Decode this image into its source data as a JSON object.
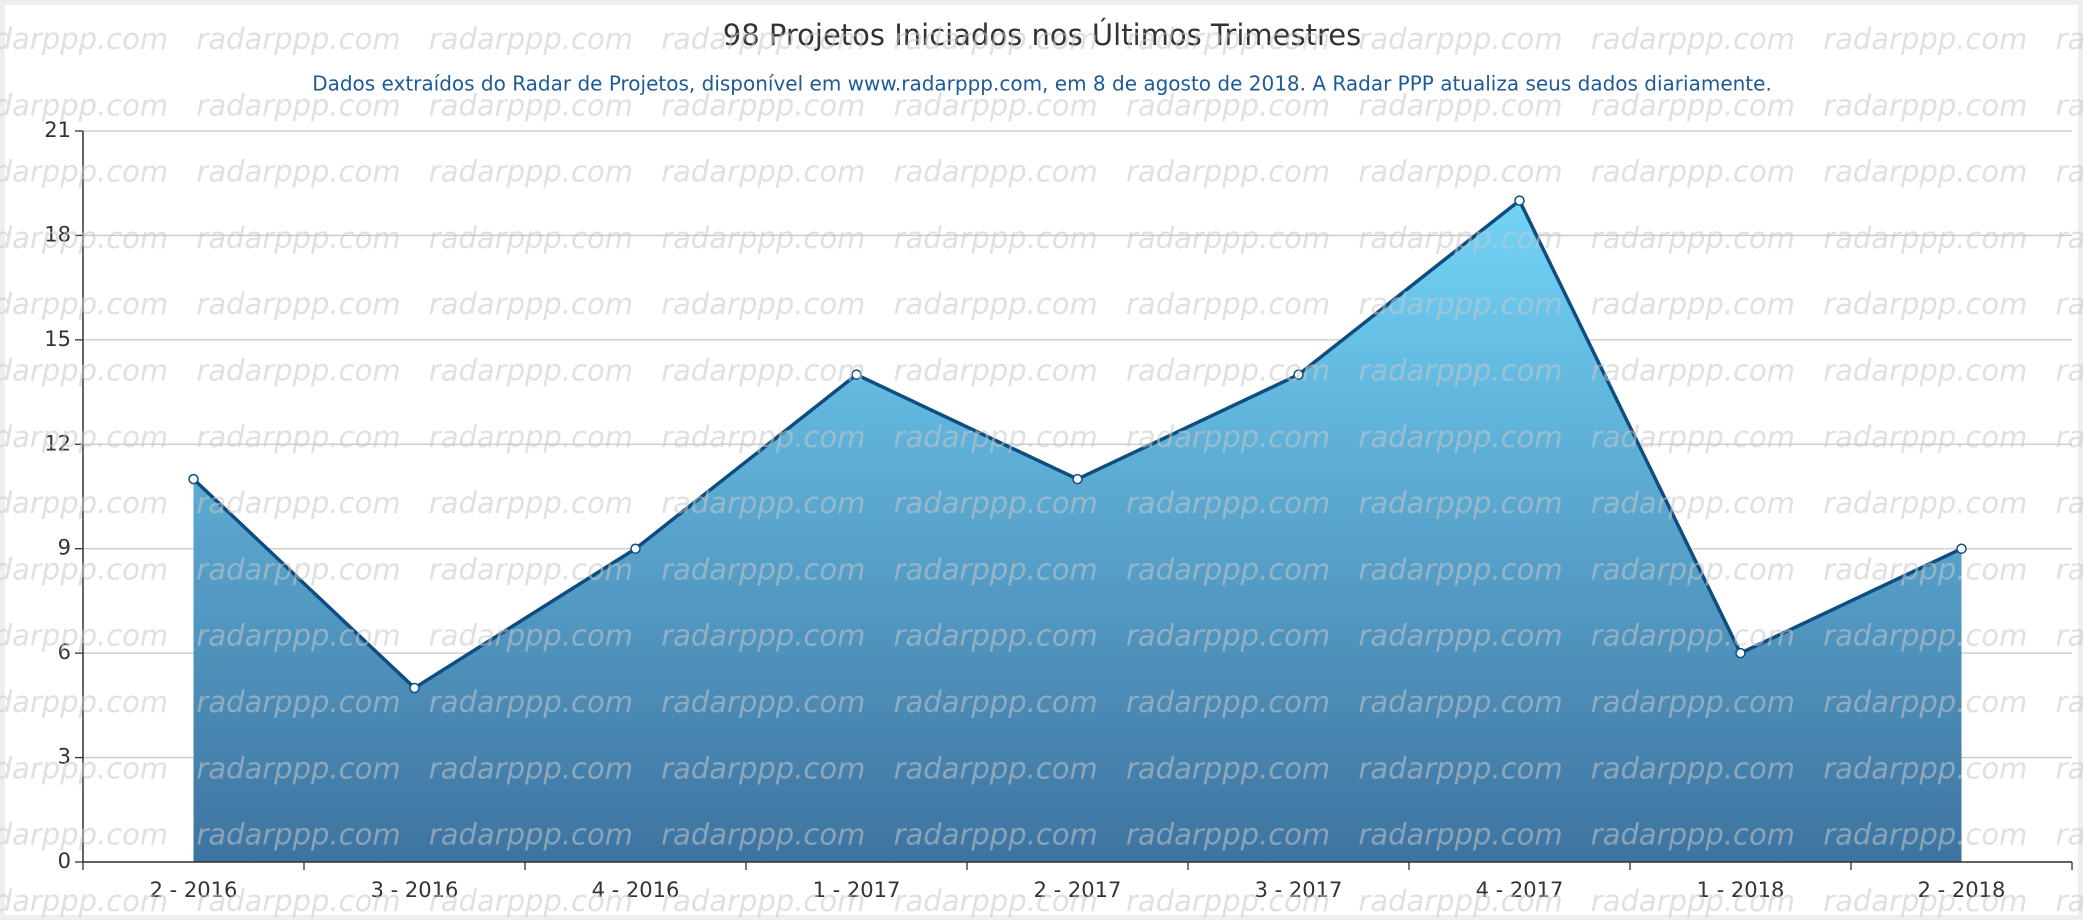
{
  "chart_data": {
    "type": "area",
    "title": "98 Projetos Iniciados nos Últimos Trimestres",
    "subtitle": "Dados extraídos do Radar de Projetos, disponível em www.radarppp.com, em 8 de agosto de 2018. A Radar PPP atualiza seus dados diariamente.",
    "watermark": "radarppp.com",
    "categories": [
      "2 - 2016",
      "3 - 2016",
      "4 - 2016",
      "1 - 2017",
      "2 - 2017",
      "3 - 2017",
      "4 - 2017",
      "1 - 2018",
      "2 - 2018"
    ],
    "values": [
      11,
      5,
      9,
      14,
      11,
      14,
      19,
      6,
      9
    ],
    "color": "#0e4d80",
    "ylim": [
      0,
      21
    ],
    "yticks": [
      0,
      3,
      6,
      9,
      12,
      15,
      18,
      21
    ],
    "grid": true
  }
}
